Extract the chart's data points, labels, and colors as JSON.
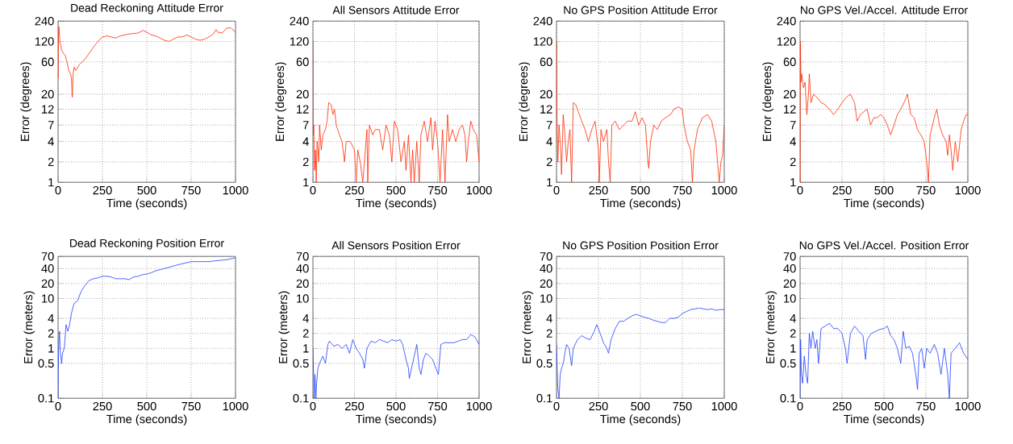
{
  "chart_data": [
    {
      "type": "line",
      "title": "Dead Reckoning Attitude Error",
      "xlabel": "Time (seconds)",
      "ylabel": "Error (degrees)",
      "log": "y",
      "grid": true,
      "color": "#ff2a00",
      "xlim": [
        0,
        1000
      ],
      "ylim": [
        1,
        240
      ],
      "xticks": [
        0,
        250,
        500,
        750,
        1000
      ],
      "yticks": [
        1,
        2,
        4,
        7,
        12,
        20,
        60,
        120,
        240
      ],
      "x": [
        1,
        2,
        5,
        10,
        20,
        30,
        40,
        50,
        60,
        70,
        75,
        80,
        85,
        90,
        100,
        120,
        150,
        175,
        200,
        225,
        250,
        275,
        300,
        325,
        350,
        400,
        450,
        480,
        500,
        525,
        550,
        575,
        600,
        625,
        650,
        675,
        700,
        725,
        750,
        775,
        800,
        825,
        850,
        875,
        890,
        900,
        925,
        950,
        975,
        1000
      ],
      "values": [
        35,
        150,
        200,
        120,
        90,
        80,
        75,
        60,
        45,
        40,
        35,
        18,
        40,
        50,
        45,
        55,
        65,
        80,
        100,
        120,
        140,
        145,
        140,
        135,
        145,
        155,
        160,
        175,
        165,
        150,
        145,
        135,
        125,
        120,
        130,
        140,
        140,
        150,
        140,
        130,
        125,
        130,
        140,
        155,
        180,
        165,
        160,
        190,
        190,
        165
      ]
    },
    {
      "type": "line",
      "title": "All Sensors Attitude Error",
      "xlabel": "Time (seconds)",
      "ylabel": "Error (degrees)",
      "log": "y",
      "grid": true,
      "color": "#ff2a00",
      "xlim": [
        0,
        1000
      ],
      "ylim": [
        1,
        240
      ],
      "xticks": [
        0,
        250,
        500,
        750,
        1000
      ],
      "yticks": [
        1,
        2,
        4,
        7,
        12,
        20,
        60,
        120,
        240
      ],
      "x": [
        1,
        2,
        5,
        10,
        15,
        20,
        25,
        30,
        35,
        40,
        50,
        60,
        75,
        85,
        95,
        110,
        120,
        130,
        140,
        160,
        175,
        190,
        200,
        225,
        250,
        260,
        270,
        285,
        300,
        310,
        325,
        330,
        340,
        360,
        375,
        400,
        420,
        440,
        460,
        475,
        490,
        510,
        530,
        550,
        560,
        575,
        590,
        600,
        610,
        625,
        640,
        650,
        670,
        690,
        710,
        720,
        735,
        750,
        765,
        780,
        795,
        810,
        820,
        840,
        860,
        880,
        900,
        915,
        925,
        935,
        950,
        965,
        985,
        1000
      ],
      "values": [
        120,
        5,
        7,
        1.5,
        3,
        1,
        4,
        3,
        2,
        7,
        3,
        5,
        6,
        8,
        15,
        14,
        10,
        12,
        7,
        5,
        4,
        2,
        4,
        4,
        3,
        1,
        3,
        2,
        1,
        2,
        6,
        1,
        7,
        5,
        6,
        6,
        3,
        7,
        5,
        2,
        8,
        6,
        2,
        4,
        1.5,
        5,
        1,
        3,
        1,
        4,
        1,
        5,
        8,
        4,
        9,
        3,
        8,
        4,
        1,
        6,
        1,
        10,
        4,
        6,
        4,
        6,
        7,
        5,
        2,
        4,
        8,
        6,
        5,
        2
      ]
    },
    {
      "type": "line",
      "title": "No GPS Position Attitude Error",
      "xlabel": "Time (seconds)",
      "ylabel": "Error (degrees)",
      "log": "y",
      "grid": true,
      "color": "#ff2a00",
      "xlim": [
        0,
        1000
      ],
      "ylim": [
        1,
        240
      ],
      "xticks": [
        0,
        250,
        500,
        750,
        1000
      ],
      "yticks": [
        1,
        2,
        4,
        7,
        12,
        20,
        60,
        120,
        240
      ],
      "x": [
        1,
        3,
        8,
        15,
        25,
        30,
        40,
        50,
        60,
        70,
        80,
        90,
        100,
        115,
        130,
        150,
        170,
        190,
        210,
        230,
        250,
        255,
        265,
        280,
        300,
        310,
        320,
        330,
        350,
        375,
        400,
        425,
        450,
        470,
        490,
        510,
        530,
        545,
        550,
        560,
        580,
        600,
        625,
        650,
        680,
        700,
        725,
        750,
        760,
        780,
        800,
        810,
        820,
        840,
        870,
        900,
        925,
        950,
        960,
        970,
        980,
        990,
        1000
      ],
      "values": [
        120,
        8,
        2,
        7,
        3,
        1.3,
        10,
        5,
        2,
        4,
        6,
        1,
        15,
        14,
        11,
        8,
        6,
        4,
        6,
        8,
        3,
        1,
        6,
        4,
        6,
        2,
        1,
        7,
        8,
        6,
        7,
        8,
        8,
        11,
        7,
        9,
        7,
        2,
        1.6,
        4,
        7,
        6,
        8,
        9,
        10,
        12,
        13,
        12,
        7,
        4,
        3,
        1,
        3,
        6,
        9,
        10,
        8,
        4,
        2,
        1,
        2,
        2.5,
        7
      ]
    },
    {
      "type": "line",
      "title": "No GPS Vel./Accel. Attitude Error",
      "xlabel": "Time (seconds)",
      "ylabel": "Error (degrees)",
      "log": "y",
      "grid": true,
      "color": "#ff2a00",
      "xlim": [
        0,
        1000
      ],
      "ylim": [
        1,
        240
      ],
      "xticks": [
        0,
        250,
        500,
        750,
        1000
      ],
      "yticks": [
        1,
        2,
        4,
        7,
        12,
        20,
        60,
        120,
        240
      ],
      "x": [
        1,
        2,
        5,
        10,
        20,
        30,
        40,
        50,
        55,
        65,
        80,
        100,
        125,
        150,
        175,
        200,
        225,
        250,
        275,
        300,
        325,
        340,
        360,
        380,
        400,
        420,
        440,
        460,
        480,
        500,
        520,
        540,
        560,
        580,
        600,
        625,
        640,
        660,
        680,
        700,
        720,
        740,
        755,
        765,
        775,
        800,
        815,
        830,
        850,
        870,
        880,
        890,
        900,
        910,
        925,
        940,
        960,
        975,
        990,
        1000
      ],
      "values": [
        1,
        120,
        30,
        40,
        25,
        30,
        10,
        20,
        40,
        15,
        20,
        18,
        15,
        14,
        12,
        10,
        12,
        15,
        18,
        20,
        15,
        8,
        10,
        11,
        12,
        7,
        9,
        9,
        10,
        9,
        7,
        5,
        7,
        10,
        12,
        16,
        20,
        10,
        9,
        6,
        5,
        4,
        2,
        1,
        5,
        9,
        12,
        7,
        5,
        4,
        2.5,
        5,
        3,
        1.5,
        4,
        2,
        6,
        8,
        10,
        10
      ]
    },
    {
      "type": "line",
      "title": "Dead Reckoning Position Error",
      "xlabel": "Time (seconds)",
      "ylabel": "Error (meters)",
      "log": "y",
      "grid": true,
      "color": "#1f3fff",
      "xlim": [
        0,
        1000
      ],
      "ylim": [
        0.1,
        70
      ],
      "xticks": [
        0,
        250,
        500,
        750,
        1000
      ],
      "yticks": [
        0.1,
        0.5,
        1,
        2,
        4,
        10,
        20,
        40,
        70
      ],
      "x": [
        0,
        3,
        8,
        12,
        20,
        25,
        35,
        45,
        55,
        65,
        75,
        90,
        110,
        130,
        150,
        175,
        200,
        225,
        250,
        275,
        300,
        325,
        350,
        375,
        400,
        425,
        450,
        475,
        500,
        525,
        550,
        575,
        600,
        650,
        700,
        750,
        800,
        850,
        900,
        950,
        1000
      ],
      "values": [
        0.1,
        1,
        2.2,
        0.9,
        0.5,
        0.8,
        1,
        3,
        2.2,
        3,
        5,
        8,
        9,
        14,
        18,
        23,
        25,
        26,
        28,
        28,
        27,
        25,
        25,
        25,
        24,
        27,
        28,
        30,
        31,
        33,
        36,
        38,
        40,
        45,
        50,
        55,
        55,
        55,
        58,
        60,
        66
      ]
    },
    {
      "type": "line",
      "title": "All Sensors Position Error",
      "xlabel": "Time (seconds)",
      "ylabel": "Error (meters)",
      "log": "y",
      "grid": true,
      "color": "#1f3fff",
      "xlim": [
        0,
        1000
      ],
      "ylim": [
        0.1,
        70
      ],
      "xticks": [
        0,
        250,
        500,
        750,
        1000
      ],
      "yticks": [
        0.1,
        0.5,
        1,
        2,
        4,
        10,
        20,
        40,
        70
      ],
      "x": [
        0,
        3,
        8,
        12,
        18,
        22,
        30,
        40,
        50,
        60,
        75,
        90,
        100,
        125,
        150,
        175,
        200,
        220,
        240,
        260,
        280,
        300,
        310,
        325,
        350,
        375,
        400,
        425,
        450,
        475,
        500,
        525,
        540,
        560,
        575,
        580,
        600,
        625,
        640,
        650,
        665,
        680,
        700,
        720,
        740,
        755,
        770,
        790,
        825,
        850,
        875,
        900,
        925,
        950,
        975,
        1000
      ],
      "values": [
        1,
        0.4,
        0.1,
        0.3,
        0.1,
        0.2,
        0.4,
        0.5,
        0.6,
        0.7,
        0.5,
        1.2,
        1.4,
        1.1,
        1.2,
        1,
        1.2,
        0.8,
        1.5,
        1,
        0.8,
        0.6,
        0.4,
        1,
        1.4,
        1.3,
        1.5,
        1.4,
        1.3,
        1.5,
        1.4,
        1.5,
        1.2,
        0.6,
        0.4,
        0.25,
        0.5,
        1.2,
        0.4,
        0.3,
        0.6,
        0.8,
        0.7,
        0.6,
        0.4,
        0.3,
        1.2,
        1.3,
        1.3,
        1.3,
        1.4,
        1.5,
        1.5,
        1.9,
        1.7,
        1.2
      ]
    },
    {
      "type": "line",
      "title": "No GPS Position Position Error",
      "xlabel": "Time (seconds)",
      "ylabel": "Error (meters)",
      "log": "y",
      "grid": true,
      "color": "#1f3fff",
      "xlim": [
        0,
        1000
      ],
      "ylim": [
        0.1,
        70
      ],
      "xticks": [
        0,
        250,
        500,
        750,
        1000
      ],
      "yticks": [
        0.1,
        0.5,
        1,
        2,
        4,
        10,
        20,
        40,
        70
      ],
      "x": [
        0,
        3,
        8,
        15,
        22,
        30,
        40,
        50,
        60,
        75,
        90,
        100,
        125,
        150,
        175,
        200,
        225,
        240,
        260,
        280,
        300,
        310,
        325,
        350,
        375,
        400,
        425,
        450,
        475,
        500,
        525,
        550,
        575,
        600,
        625,
        650,
        675,
        700,
        725,
        750,
        775,
        800,
        825,
        850,
        875,
        900,
        925,
        950,
        975,
        1000
      ],
      "values": [
        1.2,
        0.5,
        0.15,
        0.1,
        0.3,
        0.4,
        0.5,
        0.8,
        1.2,
        1,
        0.45,
        1,
        1.5,
        1.8,
        1.6,
        1.5,
        2.2,
        3,
        2,
        1.3,
        1,
        0.8,
        1.5,
        2.5,
        3.5,
        3.5,
        4,
        4.5,
        4.8,
        4.5,
        4.2,
        4,
        3.7,
        3.5,
        3.3,
        3.3,
        4,
        4,
        4.2,
        5,
        5.5,
        6,
        6.2,
        6.5,
        6.2,
        6,
        6.2,
        5.8,
        6,
        6
      ]
    },
    {
      "type": "line",
      "title": "No GPS Vel./Accel. Position Error",
      "xlabel": "Time (seconds)",
      "ylabel": "Error (meters)",
      "log": "y",
      "grid": true,
      "color": "#1f3fff",
      "xlim": [
        0,
        1000
      ],
      "ylim": [
        0.1,
        70
      ],
      "xticks": [
        0,
        250,
        500,
        750,
        1000
      ],
      "yticks": [
        0.1,
        0.5,
        1,
        2,
        4,
        10,
        20,
        40,
        70
      ],
      "x": [
        0,
        3,
        8,
        15,
        25,
        35,
        45,
        55,
        65,
        75,
        90,
        100,
        110,
        125,
        150,
        175,
        200,
        225,
        250,
        270,
        280,
        300,
        325,
        350,
        375,
        390,
        400,
        425,
        450,
        475,
        500,
        520,
        540,
        560,
        580,
        600,
        615,
        630,
        650,
        670,
        690,
        700,
        710,
        725,
        740,
        755,
        775,
        800,
        820,
        840,
        860,
        880,
        890,
        900,
        925,
        950,
        975,
        1000
      ],
      "values": [
        0.1,
        1.5,
        0.3,
        0.2,
        0.7,
        0.3,
        0.2,
        2,
        1,
        2.2,
        1,
        1.5,
        0.5,
        2.5,
        2.8,
        3.2,
        2.5,
        2.5,
        2,
        1,
        0.5,
        2,
        2.8,
        2.2,
        1.8,
        0.6,
        1.5,
        2,
        2.2,
        2.4,
        2.5,
        2.8,
        1.8,
        1.5,
        1,
        0.5,
        2.2,
        1,
        1.1,
        0.8,
        0.3,
        0.15,
        0.8,
        1,
        0.4,
        1,
        0.8,
        1.2,
        0.8,
        0.3,
        1,
        0.3,
        0.1,
        0.8,
        1,
        1.3,
        0.8,
        0.6
      ]
    }
  ]
}
